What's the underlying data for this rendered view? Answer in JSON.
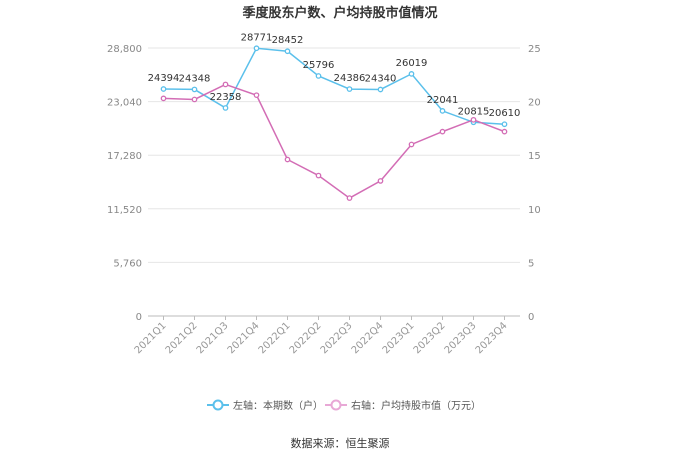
{
  "chart_data": {
    "type": "line",
    "title": "季度股东户数、户均持股市值情况",
    "source": "数据来源：恒生聚源",
    "categories": [
      "2021Q1",
      "2021Q2",
      "2021Q3",
      "2021Q4",
      "2022Q1",
      "2022Q2",
      "2022Q3",
      "2022Q4",
      "2023Q1",
      "2023Q2",
      "2023Q3",
      "2023Q4"
    ],
    "y_left": {
      "ticks": [
        0,
        5760,
        11520,
        17280,
        23040,
        28800
      ],
      "tick_labels": [
        "0",
        "5,760",
        "11,520",
        "17,280",
        "23,040",
        "28,800"
      ],
      "ylim": [
        0,
        28800
      ]
    },
    "y_right": {
      "ticks": [
        0,
        5,
        10,
        15,
        20,
        25
      ],
      "tick_labels": [
        "0",
        "5",
        "10",
        "15",
        "20",
        "25"
      ],
      "ylim": [
        0,
        25
      ]
    },
    "grid": true,
    "legend_position": "bottom",
    "series": [
      {
        "name": "左轴：本期数（户）",
        "axis": "left",
        "color": "#5bc0eb",
        "values": [
          24394,
          24348,
          22358,
          28771,
          28452,
          25796,
          24386,
          24340,
          26019,
          22041,
          20815,
          20610
        ],
        "labels": [
          "24394",
          "24348",
          "22358",
          "28771",
          "28452",
          "25796",
          "24386",
          "24340",
          "26019",
          "22041",
          "20815",
          "20610"
        ]
      },
      {
        "name": "右轴：户均持股市值（万元）",
        "axis": "right",
        "color": "#d36db5",
        "values": [
          20.3,
          20.2,
          21.6,
          20.6,
          14.6,
          13.1,
          11.0,
          12.6,
          16.0,
          17.2,
          18.3,
          17.2
        ]
      }
    ]
  }
}
